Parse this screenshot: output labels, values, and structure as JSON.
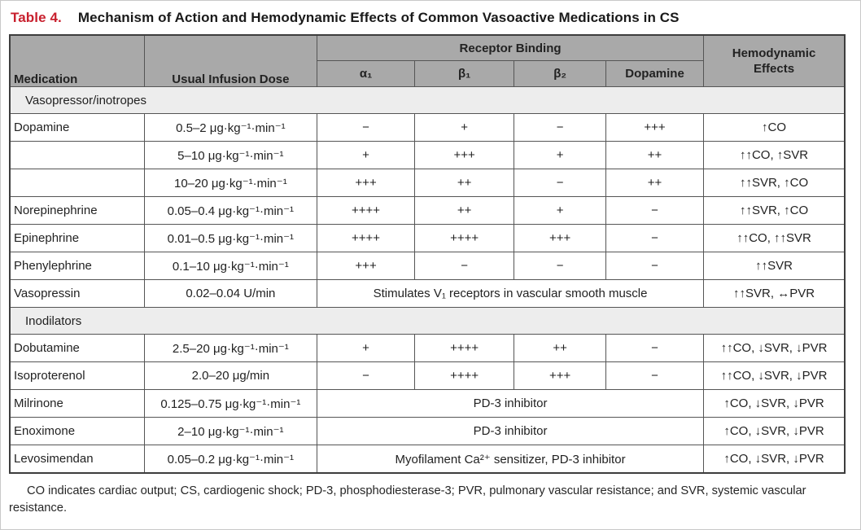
{
  "page": {
    "title_label": "Table 4.",
    "title_text": "Mechanism of Action and Hemodynamic Effects of Common Vasoactive Medications in CS",
    "footnote": "CO indicates cardiac output; CS, cardiogenic shock; PD-3, phosphodiesterase-3; PVR, pulmonary vascular resistance; and SVR, systemic vascular resistance."
  },
  "colors": {
    "accent_red": "#c8202e",
    "header_gray": "#a9a9a9",
    "section_gray": "#ededed",
    "outer_border": "#3d3d3d",
    "inner_border": "#555555"
  },
  "table": {
    "header": {
      "medication": "Medication",
      "dose": "Usual Infusion Dose",
      "receptor_binding": "Receptor Binding",
      "receptors": [
        "α₁",
        "β₁",
        "β₂",
        "Dopamine"
      ],
      "hemodynamic": "Hemodynamic Effects"
    },
    "sections": [
      {
        "label": "Vasopressor/inotropes",
        "rows": [
          {
            "medication": "Dopamine",
            "dose": "0.5–2 μg·kg⁻¹·min⁻¹",
            "receptors": [
              "−",
              "+",
              "−",
              "+++"
            ],
            "effects": "↑CO"
          },
          {
            "medication": "",
            "dose": "5–10 μg·kg⁻¹·min⁻¹",
            "receptors": [
              "+",
              "+++",
              "+",
              "++"
            ],
            "effects": "↑↑CO, ↑SVR"
          },
          {
            "medication": "",
            "dose": "10–20 μg·kg⁻¹·min⁻¹",
            "receptors": [
              "+++",
              "++",
              "−",
              "++"
            ],
            "effects": "↑↑SVR, ↑CO"
          },
          {
            "medication": "Norepinephrine",
            "dose": "0.05–0.4 μg·kg⁻¹·min⁻¹",
            "receptors": [
              "++++",
              "++",
              "+",
              "−"
            ],
            "effects": "↑↑SVR, ↑CO"
          },
          {
            "medication": "Epinephrine",
            "dose": "0.01–0.5 μg·kg⁻¹·min⁻¹",
            "receptors": [
              "++++",
              "++++",
              "+++",
              "−"
            ],
            "effects": "↑↑CO, ↑↑SVR"
          },
          {
            "medication": "Phenylephrine",
            "dose": "0.1–10 μg·kg⁻¹·min⁻¹",
            "receptors": [
              "+++",
              "−",
              "−",
              "−"
            ],
            "effects": "↑↑SVR"
          },
          {
            "medication": "Vasopressin",
            "dose": "0.02–0.04 U/min",
            "receptor_span": "Stimulates V₁ receptors in vascular smooth muscle",
            "effects": "↑↑SVR, ↔PVR"
          }
        ]
      },
      {
        "label": "Inodilators",
        "rows": [
          {
            "medication": "Dobutamine",
            "dose": "2.5–20 μg·kg⁻¹·min⁻¹",
            "receptors": [
              "+",
              "++++",
              "++",
              "−"
            ],
            "effects": "↑↑CO, ↓SVR, ↓PVR"
          },
          {
            "medication": "Isoproterenol",
            "dose": "2.0–20 μg/min",
            "receptors": [
              "−",
              "++++",
              "+++",
              "−"
            ],
            "effects": "↑↑CO, ↓SVR, ↓PVR"
          },
          {
            "medication": "Milrinone",
            "dose": "0.125–0.75 μg·kg⁻¹·min⁻¹",
            "receptor_span": "PD-3 inhibitor",
            "effects": "↑CO, ↓SVR, ↓PVR"
          },
          {
            "medication": "Enoximone",
            "dose": "2–10 μg·kg⁻¹·min⁻¹",
            "receptor_span": "PD-3 inhibitor",
            "effects": "↑CO, ↓SVR, ↓PVR"
          },
          {
            "medication": "Levosimendan",
            "dose": "0.05–0.2 μg·kg⁻¹·min⁻¹",
            "receptor_span": "Myofilament Ca²⁺ sensitizer, PD-3 inhibitor",
            "effects": "↑CO, ↓SVR, ↓PVR"
          }
        ]
      }
    ]
  }
}
